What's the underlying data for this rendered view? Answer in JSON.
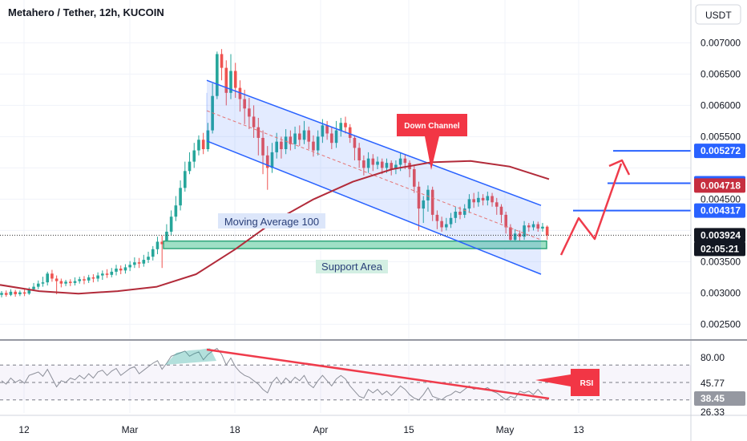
{
  "chart_data": {
    "type": "candlestick",
    "title": "Metahero / Tether, 12h, KUCOIN",
    "currency": "USDT",
    "y_ticks": [
      0.0025,
      0.003,
      0.0035,
      0.004,
      0.0045,
      0.005,
      0.0055,
      0.006,
      0.0065,
      0.007
    ],
    "y_tick_labels": [
      "0.002500",
      "0.003000",
      "0.003500",
      "",
      "0.004500",
      "",
      "0.005500",
      "0.006000",
      "0.006500",
      "0.007000"
    ],
    "ylim": [
      0.0023,
      0.0073
    ],
    "x_ticks": [
      "12",
      "Mar",
      "18",
      "Apr",
      "15",
      "May",
      "13"
    ],
    "price_badges": [
      {
        "label": "0.005272",
        "value": 0.005272,
        "color": "#2962ff"
      },
      {
        "label": "0.004755",
        "value": 0.004755,
        "color": "#2962ff"
      },
      {
        "label": "0.004718",
        "value": 0.004718,
        "color": "#c62e3f"
      },
      {
        "label": "0.004317",
        "value": 0.004317,
        "color": "#2962ff"
      },
      {
        "label": "0.003924",
        "value": 0.003924,
        "color": "#131722"
      },
      {
        "label": "02:05:21",
        "value": null,
        "color": "#131722"
      }
    ],
    "target_levels": [
      0.004317,
      0.004755,
      0.005272
    ],
    "last_price": 0.003924,
    "annotations": {
      "moving_average": "Moving Average 100",
      "support": "Support Area",
      "down_channel": "Down Channel",
      "rsi_note": "RSI"
    },
    "channel": {
      "upper": [
        [
          0.0064,
          0.0044
        ]
      ],
      "lower": [
        [
          0.00543,
          0.0033
        ]
      ]
    },
    "support_area": [
      0.00371,
      0.00383
    ],
    "ma100_values": [
      0.00313,
      0.00303,
      0.00299,
      0.00303,
      0.0031,
      0.0033,
      0.0037,
      0.00415,
      0.0045,
      0.00478,
      0.00498,
      0.00509,
      0.00511,
      0.00502,
      0.00482
    ],
    "candles": [
      [
        0.00297,
        0.003,
        0.00303,
        0.00293
      ],
      [
        0.003,
        0.00297,
        0.00304,
        0.00294
      ],
      [
        0.00297,
        0.00302,
        0.00306,
        0.00295
      ],
      [
        0.00302,
        0.00298,
        0.00305,
        0.00294
      ],
      [
        0.00298,
        0.00301,
        0.00304,
        0.00295
      ],
      [
        0.00301,
        0.00299,
        0.00306,
        0.00295
      ],
      [
        0.00299,
        0.00306,
        0.00309,
        0.00297
      ],
      [
        0.00306,
        0.0031,
        0.00316,
        0.00303
      ],
      [
        0.0031,
        0.00315,
        0.0032,
        0.00306
      ],
      [
        0.00315,
        0.00317,
        0.00326,
        0.0031
      ],
      [
        0.00317,
        0.00331,
        0.00334,
        0.00312
      ],
      [
        0.00331,
        0.00323,
        0.00337,
        0.00318
      ],
      [
        0.00323,
        0.00319,
        0.00328,
        0.00298
      ],
      [
        0.00319,
        0.00315,
        0.00323,
        0.00309
      ],
      [
        0.00315,
        0.00318,
        0.00321,
        0.00311
      ],
      [
        0.00318,
        0.00316,
        0.00322,
        0.00311
      ],
      [
        0.00316,
        0.00319,
        0.00325,
        0.00312
      ],
      [
        0.00319,
        0.00322,
        0.00326,
        0.00315
      ],
      [
        0.00322,
        0.0032,
        0.00327,
        0.00314
      ],
      [
        0.0032,
        0.00325,
        0.00329,
        0.00316
      ],
      [
        0.00325,
        0.00323,
        0.0033,
        0.00317
      ],
      [
        0.00323,
        0.00328,
        0.00333,
        0.00318
      ],
      [
        0.00328,
        0.00331,
        0.00336,
        0.00321
      ],
      [
        0.00331,
        0.00329,
        0.00338,
        0.00324
      ],
      [
        0.00329,
        0.00334,
        0.0034,
        0.00325
      ],
      [
        0.00334,
        0.00339,
        0.00345,
        0.00328
      ],
      [
        0.00339,
        0.00336,
        0.00344,
        0.0033
      ],
      [
        0.00336,
        0.00341,
        0.00346,
        0.00331
      ],
      [
        0.00341,
        0.00345,
        0.00351,
        0.00335
      ],
      [
        0.00345,
        0.00349,
        0.00357,
        0.0034
      ],
      [
        0.00349,
        0.00347,
        0.00356,
        0.0034
      ],
      [
        0.00347,
        0.00353,
        0.00361,
        0.00342
      ],
      [
        0.00353,
        0.00358,
        0.00366,
        0.00348
      ],
      [
        0.00358,
        0.0037,
        0.00375,
        0.00352
      ],
      [
        0.0037,
        0.00382,
        0.0039,
        0.00362
      ],
      [
        0.00382,
        0.00378,
        0.00392,
        0.0034
      ],
      [
        0.00378,
        0.00398,
        0.0041,
        0.00372
      ],
      [
        0.00398,
        0.00422,
        0.00432,
        0.00392
      ],
      [
        0.00422,
        0.0044,
        0.00455,
        0.00415
      ],
      [
        0.0044,
        0.00468,
        0.0048,
        0.00432
      ],
      [
        0.00468,
        0.00495,
        0.0051,
        0.00462
      ],
      [
        0.00495,
        0.0051,
        0.00525,
        0.0049
      ],
      [
        0.0051,
        0.00528,
        0.0054,
        0.005
      ],
      [
        0.00528,
        0.00545,
        0.00552,
        0.0052
      ],
      [
        0.00545,
        0.0053,
        0.00556,
        0.00522
      ],
      [
        0.0053,
        0.0056,
        0.00572,
        0.00526
      ],
      [
        0.0056,
        0.00615,
        0.00635,
        0.00555
      ],
      [
        0.00615,
        0.00682,
        0.00686,
        0.0061
      ],
      [
        0.00682,
        0.0066,
        0.0069,
        0.0064
      ],
      [
        0.0066,
        0.0062,
        0.00672,
        0.006
      ],
      [
        0.0062,
        0.00655,
        0.00682,
        0.0061
      ],
      [
        0.00655,
        0.00628,
        0.00668,
        0.00612
      ],
      [
        0.00628,
        0.0061,
        0.0064,
        0.0059
      ],
      [
        0.0061,
        0.00595,
        0.00625,
        0.0057
      ],
      [
        0.00595,
        0.00582,
        0.00612,
        0.00562
      ],
      [
        0.00582,
        0.00565,
        0.006,
        0.00548
      ],
      [
        0.00565,
        0.00548,
        0.0058,
        0.0052
      ],
      [
        0.00548,
        0.0052,
        0.0056,
        0.0049
      ],
      [
        0.0052,
        0.005,
        0.00535,
        0.00465
      ],
      [
        0.005,
        0.00525,
        0.0054,
        0.00492
      ],
      [
        0.00525,
        0.00542,
        0.00556,
        0.00515
      ],
      [
        0.00542,
        0.0053,
        0.0055,
        0.00515
      ],
      [
        0.0053,
        0.0055,
        0.00562,
        0.00522
      ],
      [
        0.0055,
        0.00538,
        0.0056,
        0.00528
      ],
      [
        0.00538,
        0.00555,
        0.00566,
        0.0053
      ],
      [
        0.00555,
        0.00545,
        0.00568,
        0.00535
      ],
      [
        0.00545,
        0.0056,
        0.00575,
        0.00538
      ],
      [
        0.0056,
        0.00542,
        0.00566,
        0.0053
      ],
      [
        0.00542,
        0.00528,
        0.00552,
        0.00518
      ],
      [
        0.00528,
        0.0055,
        0.0056,
        0.0052
      ],
      [
        0.0055,
        0.00568,
        0.00578,
        0.0054
      ],
      [
        0.00568,
        0.00555,
        0.00575,
        0.00545
      ],
      [
        0.00555,
        0.0054,
        0.00565,
        0.0053
      ],
      [
        0.0054,
        0.0056,
        0.00575,
        0.00532
      ],
      [
        0.0056,
        0.00572,
        0.0058,
        0.0055
      ],
      [
        0.00572,
        0.00565,
        0.00582,
        0.00555
      ],
      [
        0.00565,
        0.00548,
        0.0057,
        0.0054
      ],
      [
        0.00548,
        0.00532,
        0.00552,
        0.00512
      ],
      [
        0.00532,
        0.00512,
        0.0054,
        0.005
      ],
      [
        0.00512,
        0.005,
        0.0052,
        0.00488
      ],
      [
        0.005,
        0.00515,
        0.00525,
        0.00492
      ],
      [
        0.00515,
        0.00505,
        0.00522,
        0.00495
      ],
      [
        0.00505,
        0.0051,
        0.00518,
        0.00498
      ],
      [
        0.0051,
        0.005,
        0.00515,
        0.0049
      ],
      [
        0.005,
        0.00508,
        0.00515,
        0.00492
      ],
      [
        0.00508,
        0.00498,
        0.00512,
        0.00488
      ],
      [
        0.00498,
        0.00505,
        0.00512,
        0.0049
      ],
      [
        0.00505,
        0.00515,
        0.00525,
        0.00495
      ],
      [
        0.00515,
        0.00508,
        0.00522,
        0.00498
      ],
      [
        0.00508,
        0.00498,
        0.00512,
        0.00485
      ],
      [
        0.00498,
        0.0047,
        0.00505,
        0.0046
      ],
      [
        0.0047,
        0.00435,
        0.00478,
        0.004
      ],
      [
        0.00435,
        0.00448,
        0.00455,
        0.00412
      ],
      [
        0.00448,
        0.00465,
        0.00472,
        0.0043
      ],
      [
        0.00465,
        0.00425,
        0.0047,
        0.00415
      ],
      [
        0.00425,
        0.00415,
        0.00432,
        0.00402
      ],
      [
        0.00415,
        0.00405,
        0.00422,
        0.00398
      ],
      [
        0.00405,
        0.0041,
        0.0042,
        0.004
      ],
      [
        0.0041,
        0.0042,
        0.00428,
        0.00404
      ],
      [
        0.0042,
        0.0043,
        0.00438,
        0.00412
      ],
      [
        0.0043,
        0.00425,
        0.00438,
        0.00418
      ],
      [
        0.00425,
        0.00435,
        0.00442,
        0.0042
      ],
      [
        0.00435,
        0.0045,
        0.00458,
        0.00428
      ],
      [
        0.0045,
        0.00445,
        0.0046,
        0.00436
      ],
      [
        0.00445,
        0.00452,
        0.00462,
        0.00438
      ],
      [
        0.00452,
        0.00448,
        0.00458,
        0.0044
      ],
      [
        0.00448,
        0.00455,
        0.00462,
        0.0044
      ],
      [
        0.00455,
        0.00445,
        0.0046,
        0.00438
      ],
      [
        0.00445,
        0.00438,
        0.00452,
        0.00425
      ],
      [
        0.00438,
        0.00425,
        0.00442,
        0.00412
      ],
      [
        0.00425,
        0.00405,
        0.0043,
        0.00395
      ],
      [
        0.00405,
        0.00385,
        0.0041,
        0.00372
      ],
      [
        0.00385,
        0.00395,
        0.00402,
        0.00372
      ],
      [
        0.00395,
        0.0039,
        0.004,
        0.00375
      ],
      [
        0.0039,
        0.00408,
        0.00415,
        0.00385
      ],
      [
        0.00408,
        0.00405,
        0.00412,
        0.00398
      ],
      [
        0.00405,
        0.0041,
        0.00415,
        0.004
      ],
      [
        0.0041,
        0.00403,
        0.00414,
        0.00398
      ],
      [
        0.00403,
        0.00406,
        0.00412,
        0.00398
      ],
      [
        0.00406,
        0.00392,
        0.00408,
        0.00385
      ]
    ],
    "rsi": {
      "levels": [
        70,
        50,
        30
      ],
      "tick_labels": [
        "80.00",
        "45.77",
        "38.45",
        "26.33"
      ],
      "ylim": [
        15,
        95
      ],
      "values": [
        52,
        48,
        55,
        50,
        53,
        49,
        58,
        60,
        62,
        57,
        65,
        55,
        45,
        52,
        50,
        55,
        53,
        58,
        54,
        60,
        55,
        62,
        64,
        58,
        63,
        66,
        58,
        62,
        66,
        68,
        60,
        64,
        68,
        72,
        75,
        65,
        72,
        80,
        82,
        84,
        86,
        80,
        83,
        85,
        76,
        82,
        86,
        89,
        82,
        70,
        78,
        68,
        62,
        58,
        56,
        52,
        48,
        42,
        38,
        50,
        56,
        48,
        55,
        50,
        56,
        52,
        58,
        48,
        44,
        52,
        58,
        52,
        46,
        54,
        58,
        54,
        46,
        40,
        34,
        32,
        42,
        38,
        42,
        36,
        40,
        35,
        40,
        46,
        42,
        36,
        32,
        30,
        36,
        44,
        34,
        32,
        30,
        34,
        36,
        40,
        38,
        42,
        46,
        42,
        44,
        42,
        44,
        40,
        38,
        34,
        30,
        34,
        32,
        40,
        38,
        40,
        36,
        42,
        36
      ]
    }
  }
}
